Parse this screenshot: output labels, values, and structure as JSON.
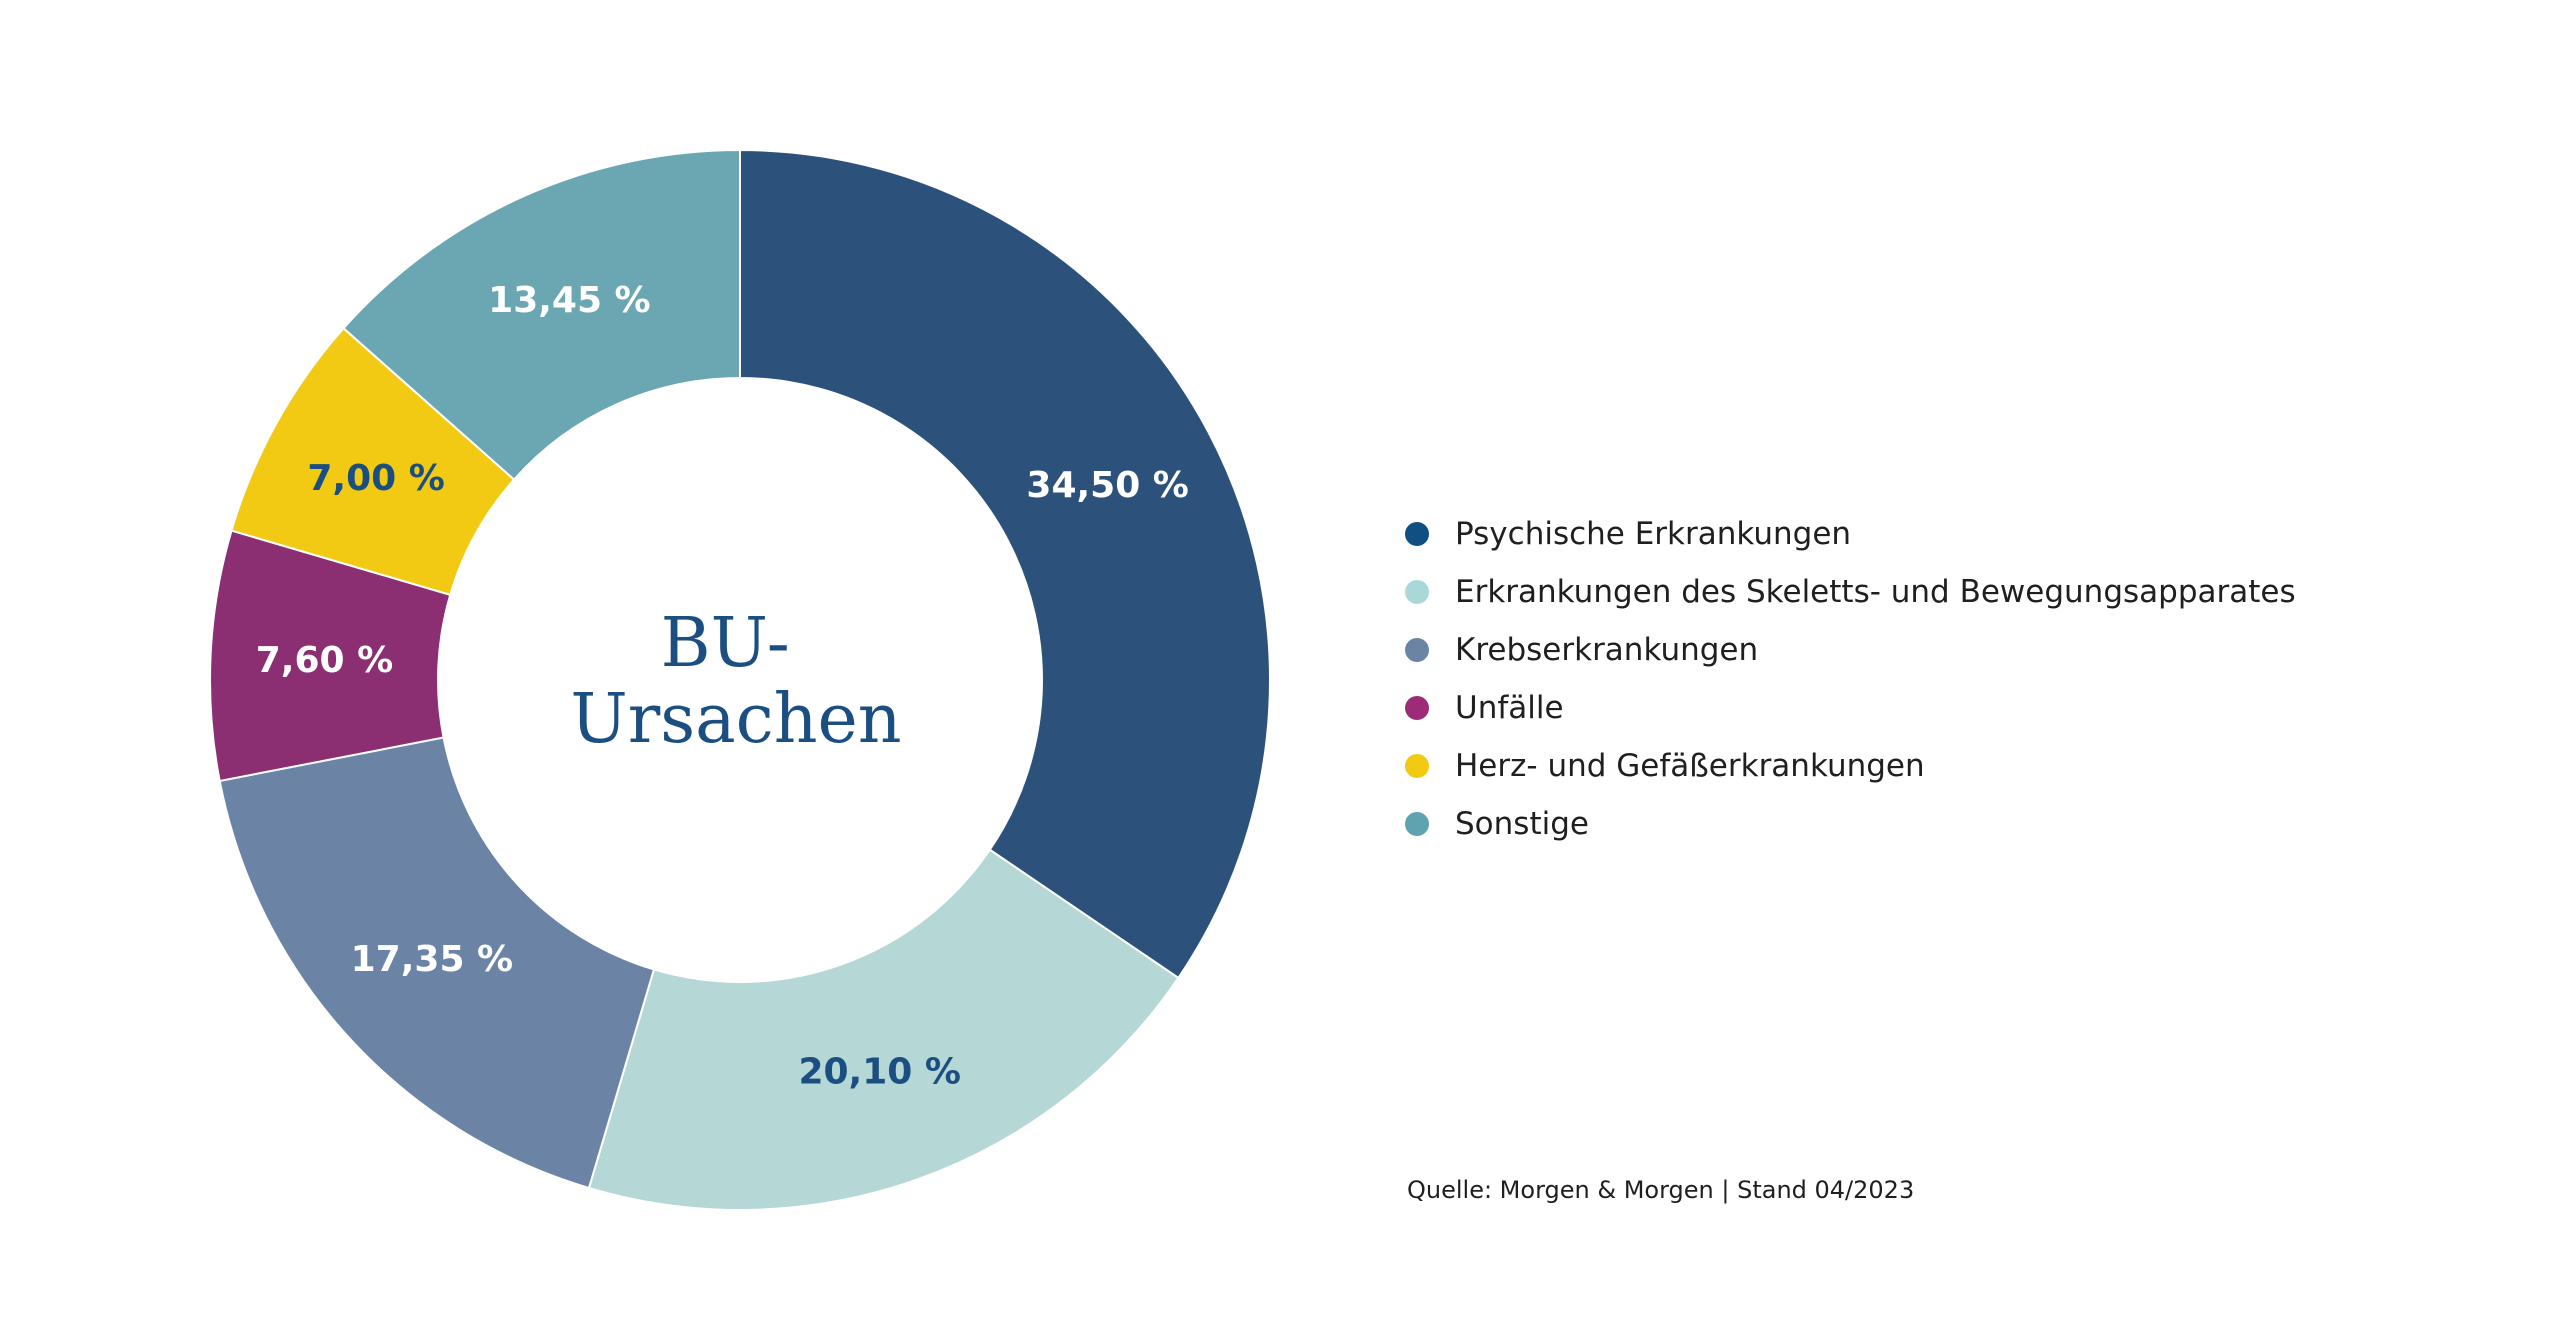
{
  "chart_data": {
    "type": "pie",
    "variant": "donut",
    "center_title_lines": [
      "BU-",
      "Ursachen"
    ],
    "series": [
      {
        "name": "Psychische Erkrankungen",
        "value": 34.5,
        "label": "34,50 %",
        "color": "#2c527c",
        "label_color": "#ffffff"
      },
      {
        "name": "Erkrankungen des Skeletts- und Bewegungsapparates",
        "value": 20.1,
        "label": "20,10 %",
        "color": "#b5d7d6",
        "label_color": "#1b4f82"
      },
      {
        "name": "Krebserkrankungen",
        "value": 17.35,
        "label": "17,35 %",
        "color": "#6b84a6",
        "label_color": "#ffffff"
      },
      {
        "name": "Unfälle",
        "value": 7.6,
        "label": "7,60 %",
        "color": "#8b2e72",
        "label_color": "#ffffff"
      },
      {
        "name": "Herz- und Gefäßerkrankungen",
        "value": 7.0,
        "label": "7,00 %",
        "color": "#f2ca14",
        "label_color": "#1b4f82"
      },
      {
        "name": "Sonstige",
        "value": 13.45,
        "label": "13,45 %",
        "color": "#6ba7b3",
        "label_color": "#ffffff"
      }
    ],
    "legend_position": "right",
    "legend_dot_colors": [
      "#114f82",
      "#a8d8d8",
      "#6b84a6",
      "#9c2c78",
      "#f2ca14",
      "#5fa2b0"
    ],
    "start_angle": "top",
    "direction": "clockwise"
  },
  "source_text": "Quelle: Morgen & Morgen | Stand 04/2023"
}
